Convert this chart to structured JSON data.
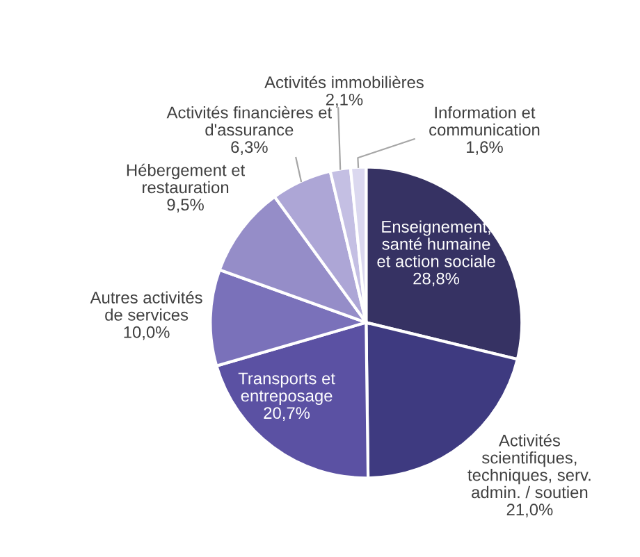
{
  "chart_data": {
    "type": "pie",
    "categories": [
      "Enseignement,\nsanté humaine\net action sociale",
      "Activités\nscientifiques,\ntechniques, serv.\nadmin. / soutien",
      "Transports et\nentreposage",
      "Autres activités\nde services",
      "Hébergement et\nrestauration",
      "Activités financières et\nd'assurance",
      "Activités immobilières",
      "Information et\ncommunication"
    ],
    "values": [
      28.8,
      21.0,
      20.7,
      10.0,
      9.5,
      6.3,
      2.1,
      1.6
    ],
    "value_labels": [
      "28,8%",
      "21,0%",
      "20,7%",
      "10,0%",
      "9,5%",
      "6,3%",
      "2,1%",
      "1,6%"
    ],
    "colors": [
      "#363263",
      "#3e3a80",
      "#5b51a3",
      "#7a71ba",
      "#958dc8",
      "#ada6d6",
      "#c4bfe3",
      "#dbd8ef"
    ]
  }
}
